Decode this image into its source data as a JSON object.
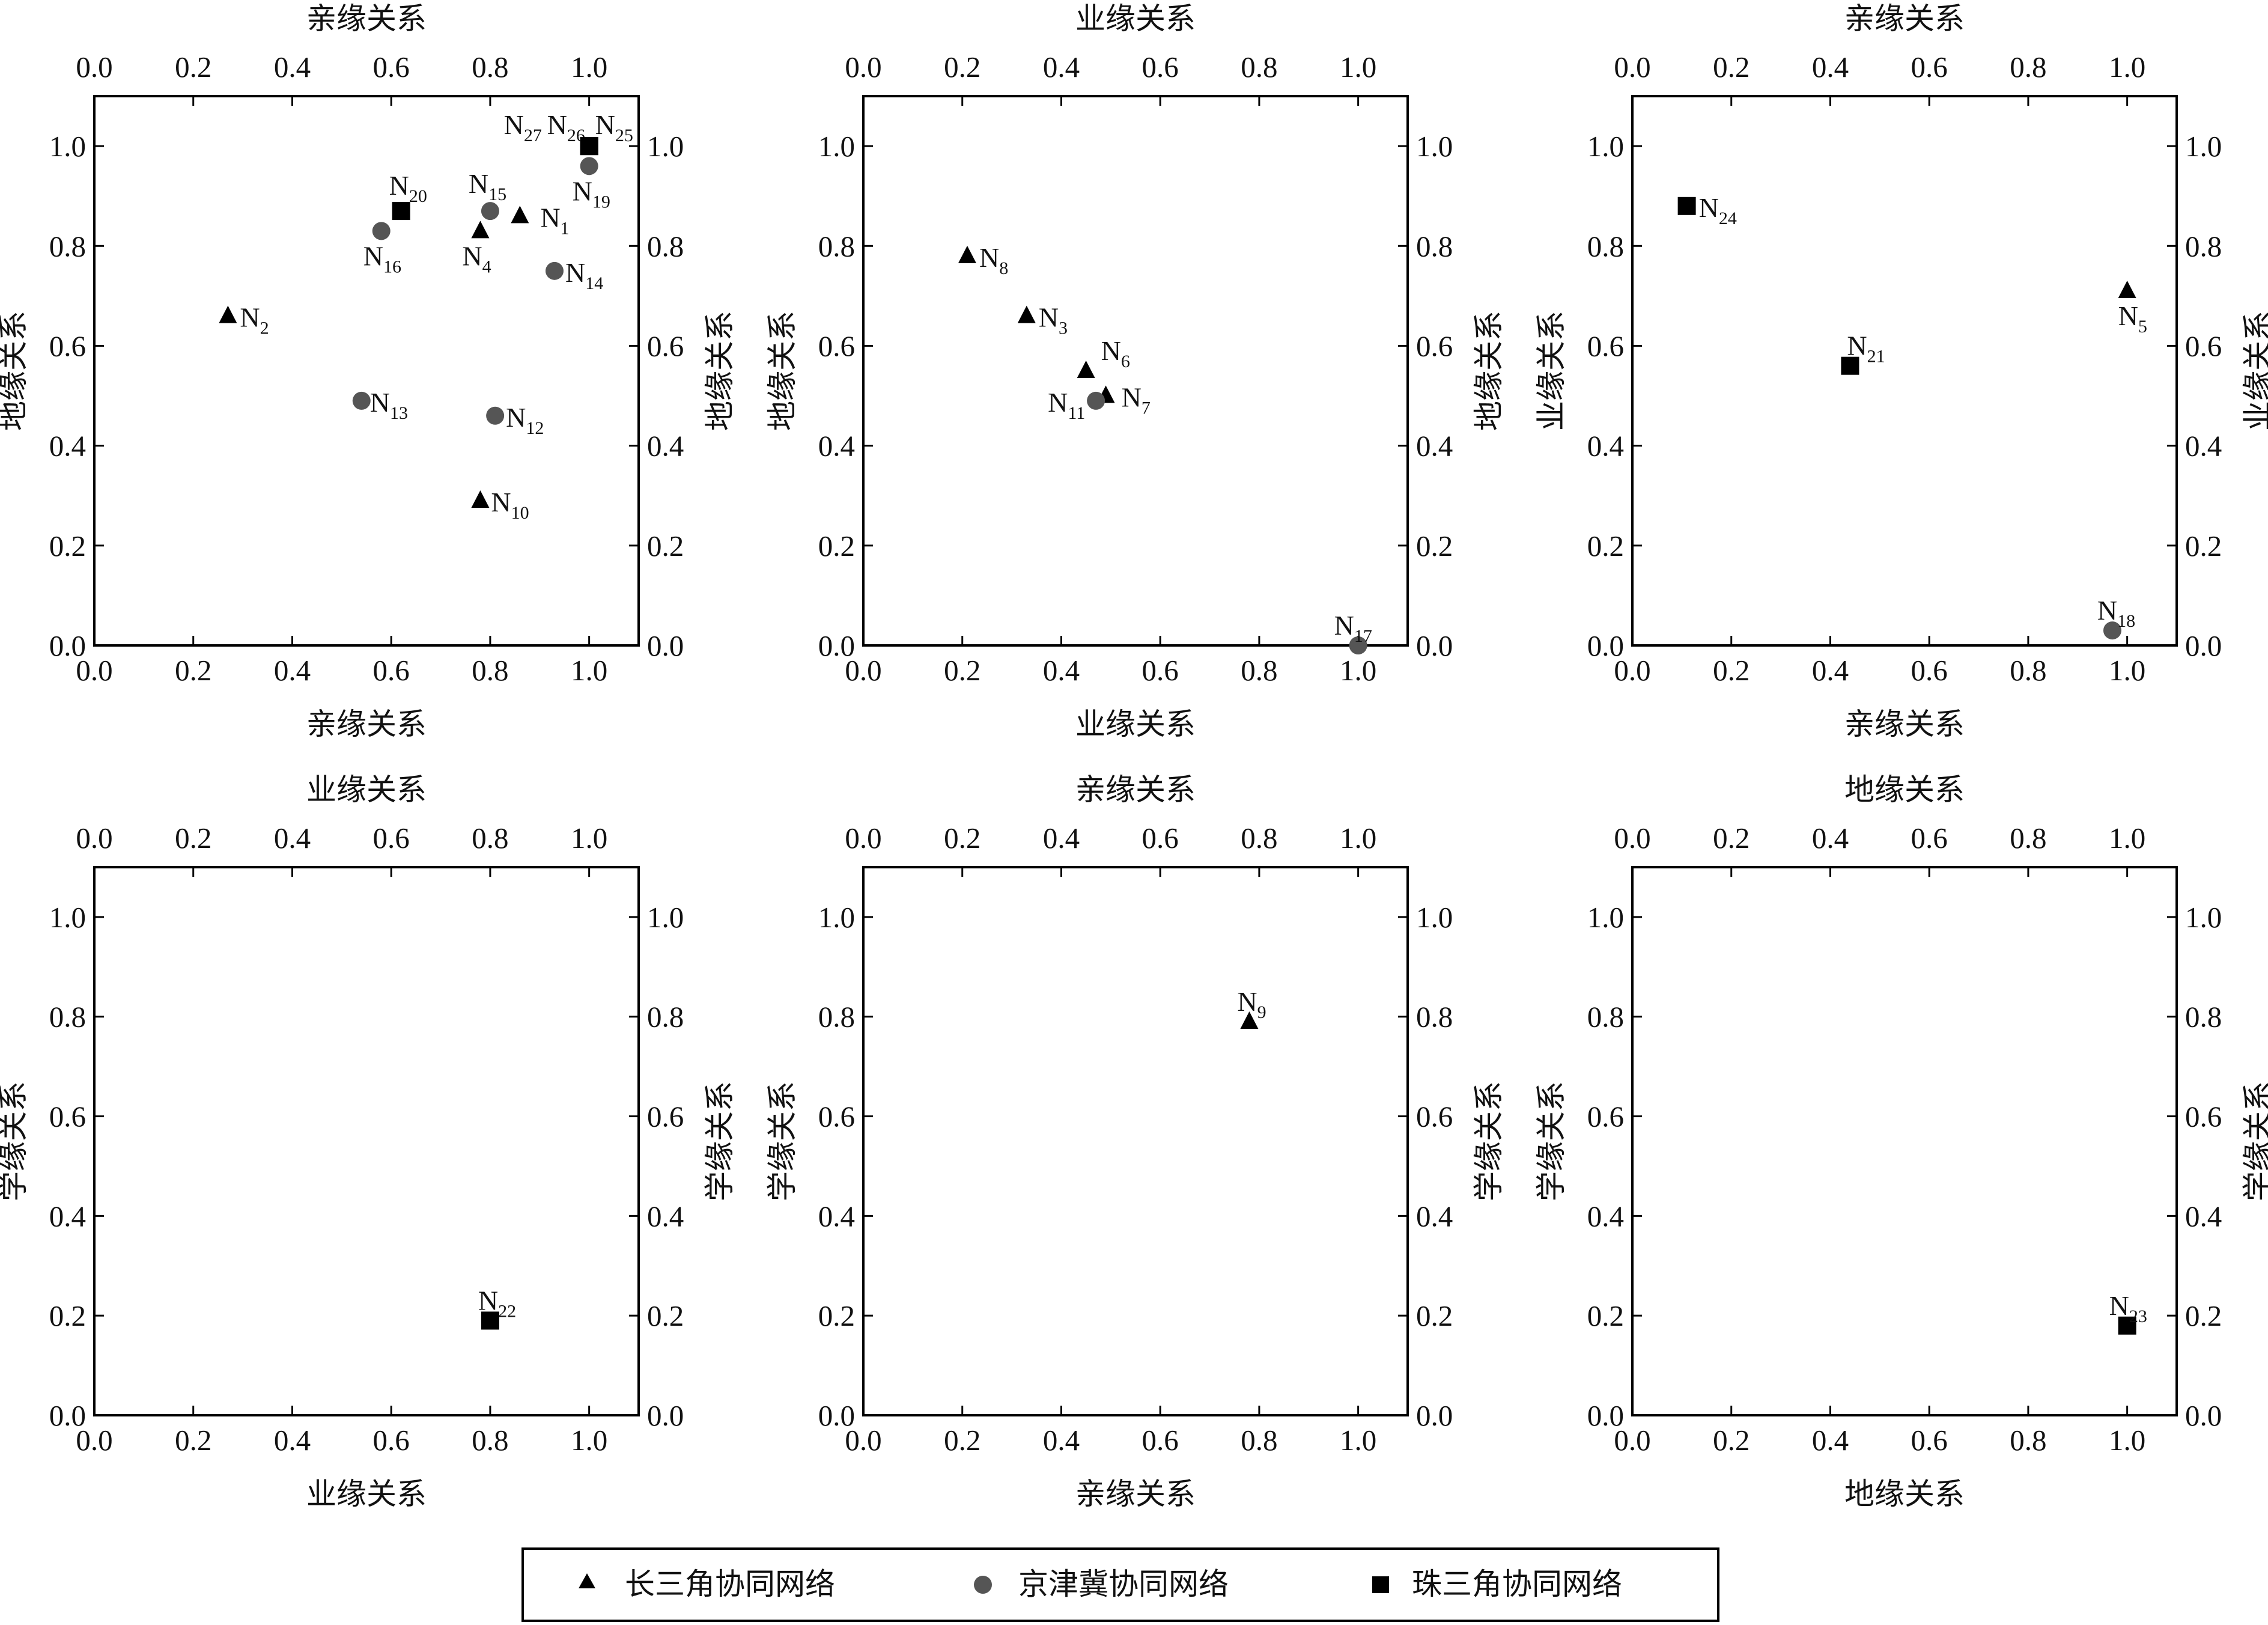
{
  "colors": {
    "axis": "#000000",
    "长三角协同网络": "#000000",
    "京津冀协同网络": "#555555",
    "珠三角协同网络": "#000000"
  },
  "legend": {
    "entries": [
      {
        "name": "长三角协同网络",
        "marker": "triangle"
      },
      {
        "name": "京津冀协同网络",
        "marker": "circle"
      },
      {
        "name": "珠三角协同网络",
        "marker": "square"
      }
    ],
    "placement": "bottom-center"
  },
  "chart_data": [
    {
      "type": "scatter",
      "top_label": "亲缘关系",
      "xlabel": "亲缘关系",
      "ylabel": "地缘关系",
      "right_label": "地缘关系",
      "xlim": [
        0,
        1.1
      ],
      "ylim": [
        0,
        1.1
      ],
      "xticks": [
        "0.0",
        "0.2",
        "0.4",
        "0.6",
        "0.8",
        "1.0"
      ],
      "yticks": [
        "0.0",
        "0.2",
        "0.4",
        "0.6",
        "0.8",
        "1.0"
      ],
      "grid": false,
      "points": [
        {
          "label": "N",
          "sub": "27",
          "x": 1.0,
          "y": 1.0,
          "series": "珠三角协同网络"
        },
        {
          "label": "N",
          "sub": "26",
          "x": 1.0,
          "y": 1.0,
          "series": "珠三角协同网络"
        },
        {
          "label": "N",
          "sub": "25",
          "x": 1.0,
          "y": 1.0,
          "series": "珠三角协同网络"
        },
        {
          "label": "N",
          "sub": "19",
          "x": 1.0,
          "y": 0.96,
          "series": "京津冀协同网络"
        },
        {
          "label": "N",
          "sub": "20",
          "x": 0.62,
          "y": 0.87,
          "series": "珠三角协同网络"
        },
        {
          "label": "N",
          "sub": "15",
          "x": 0.8,
          "y": 0.87,
          "series": "京津冀协同网络"
        },
        {
          "label": "N",
          "sub": "1",
          "x": 0.86,
          "y": 0.86,
          "series": "长三角协同网络"
        },
        {
          "label": "N",
          "sub": "16",
          "x": 0.58,
          "y": 0.83,
          "series": "京津冀协同网络"
        },
        {
          "label": "N",
          "sub": "4",
          "x": 0.78,
          "y": 0.83,
          "series": "长三角协同网络"
        },
        {
          "label": "N",
          "sub": "14",
          "x": 0.93,
          "y": 0.75,
          "series": "京津冀协同网络"
        },
        {
          "label": "N",
          "sub": "2",
          "x": 0.27,
          "y": 0.66,
          "series": "长三角协同网络"
        },
        {
          "label": "N",
          "sub": "13",
          "x": 0.54,
          "y": 0.49,
          "series": "京津冀协同网络"
        },
        {
          "label": "N",
          "sub": "12",
          "x": 0.81,
          "y": 0.46,
          "series": "京津冀协同网络"
        },
        {
          "label": "N",
          "sub": "10",
          "x": 0.78,
          "y": 0.29,
          "series": "长三角协同网络"
        }
      ]
    },
    {
      "type": "scatter",
      "top_label": "业缘关系",
      "xlabel": "业缘关系",
      "ylabel": "地缘关系",
      "right_label": "地缘关系",
      "xlim": [
        0,
        1.1
      ],
      "ylim": [
        0,
        1.1
      ],
      "xticks": [
        "0.0",
        "0.2",
        "0.4",
        "0.6",
        "0.8",
        "1.0"
      ],
      "yticks": [
        "0.0",
        "0.2",
        "0.4",
        "0.6",
        "0.8",
        "1.0"
      ],
      "grid": false,
      "points": [
        {
          "label": "N",
          "sub": "8",
          "x": 0.21,
          "y": 0.78,
          "series": "长三角协同网络"
        },
        {
          "label": "N",
          "sub": "3",
          "x": 0.33,
          "y": 0.66,
          "series": "长三角协同网络"
        },
        {
          "label": "N",
          "sub": "6",
          "x": 0.45,
          "y": 0.55,
          "series": "长三角协同网络"
        },
        {
          "label": "N",
          "sub": "7",
          "x": 0.49,
          "y": 0.5,
          "series": "长三角协同网络"
        },
        {
          "label": "N",
          "sub": "11",
          "x": 0.47,
          "y": 0.49,
          "series": "京津冀协同网络"
        },
        {
          "label": "N",
          "sub": "17",
          "x": 1.0,
          "y": 0.0,
          "series": "京津冀协同网络"
        }
      ]
    },
    {
      "type": "scatter",
      "top_label": "亲缘关系",
      "xlabel": "亲缘关系",
      "ylabel": "业缘关系",
      "right_label": "业缘关系",
      "xlim": [
        0,
        1.1
      ],
      "ylim": [
        0,
        1.1
      ],
      "xticks": [
        "0.0",
        "0.2",
        "0.4",
        "0.6",
        "0.8",
        "1.0"
      ],
      "yticks": [
        "0.0",
        "0.2",
        "0.4",
        "0.6",
        "0.8",
        "1.0"
      ],
      "grid": false,
      "points": [
        {
          "label": "N",
          "sub": "24",
          "x": 0.11,
          "y": 0.88,
          "series": "珠三角协同网络"
        },
        {
          "label": "N",
          "sub": "5",
          "x": 1.0,
          "y": 0.71,
          "series": "长三角协同网络"
        },
        {
          "label": "N",
          "sub": "21",
          "x": 0.44,
          "y": 0.56,
          "series": "珠三角协同网络"
        },
        {
          "label": "N",
          "sub": "18",
          "x": 0.97,
          "y": 0.03,
          "series": "京津冀协同网络"
        }
      ]
    },
    {
      "type": "scatter",
      "top_label": "业缘关系",
      "xlabel": "业缘关系",
      "ylabel": "学缘关系",
      "right_label": "学缘关系",
      "xlim": [
        0,
        1.1
      ],
      "ylim": [
        0,
        1.1
      ],
      "xticks": [
        "0.0",
        "0.2",
        "0.4",
        "0.6",
        "0.8",
        "1.0"
      ],
      "yticks": [
        "0.0",
        "0.2",
        "0.4",
        "0.6",
        "0.8",
        "1.0"
      ],
      "grid": false,
      "points": [
        {
          "label": "N",
          "sub": "22",
          "x": 0.8,
          "y": 0.19,
          "series": "珠三角协同网络"
        }
      ]
    },
    {
      "type": "scatter",
      "top_label": "亲缘关系",
      "xlabel": "亲缘关系",
      "ylabel": "学缘关系",
      "right_label": "学缘关系",
      "xlim": [
        0,
        1.1
      ],
      "ylim": [
        0,
        1.1
      ],
      "xticks": [
        "0.0",
        "0.2",
        "0.4",
        "0.6",
        "0.8",
        "1.0"
      ],
      "yticks": [
        "0.0",
        "0.2",
        "0.4",
        "0.6",
        "0.8",
        "1.0"
      ],
      "grid": false,
      "points": [
        {
          "label": "N",
          "sub": "9",
          "x": 0.78,
          "y": 0.79,
          "series": "长三角协同网络"
        }
      ]
    },
    {
      "type": "scatter",
      "top_label": "地缘关系",
      "xlabel": "地缘关系",
      "ylabel": "学缘关系",
      "right_label": "学缘关系",
      "xlim": [
        0,
        1.1
      ],
      "ylim": [
        0,
        1.1
      ],
      "xticks": [
        "0.0",
        "0.2",
        "0.4",
        "0.6",
        "0.8",
        "1.0"
      ],
      "yticks": [
        "0.0",
        "0.2",
        "0.4",
        "0.6",
        "0.8",
        "1.0"
      ],
      "grid": false,
      "points": [
        {
          "label": "N",
          "sub": "23",
          "x": 1.0,
          "y": 0.18,
          "series": "珠三角协同网络"
        }
      ]
    }
  ]
}
